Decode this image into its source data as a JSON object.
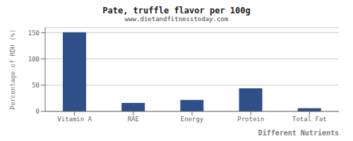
{
  "chart_data": {
    "type": "bar",
    "title": "Pate, truffle flavor per 100g",
    "subtitle": "www.dietandfitnesstoday.com",
    "xlabel": "Different Nutrients",
    "ylabel": "Percentage of RDH (%)",
    "categories": [
      "Vitamin A",
      "RAE",
      "Energy",
      "Protein",
      "Total Fat"
    ],
    "values": [
      151,
      16,
      22,
      44,
      6
    ],
    "color": "#2e4f8a",
    "ylim": [
      0,
      160
    ],
    "yticks": [
      0,
      50,
      100,
      150
    ],
    "grid": true
  }
}
